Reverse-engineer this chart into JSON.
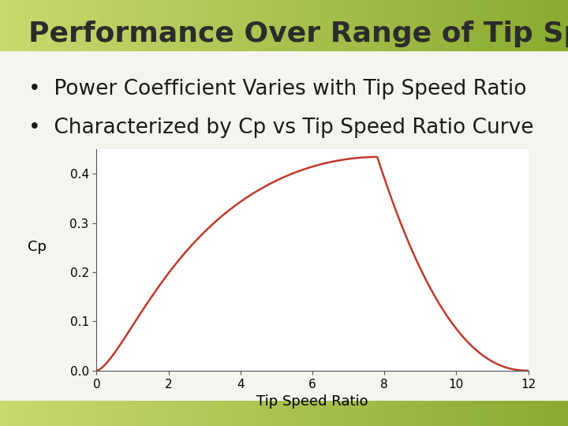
{
  "title": "Performance Over Range of Tip Speed Ratios",
  "bullet1": "Power Coefficient Varies with Tip Speed Ratio",
  "bullet2": "Characterized by Cp vs Tip Speed Ratio Curve",
  "xlabel": "Tip Speed Ratio",
  "ylabel": "Cp",
  "xlim": [
    0,
    12
  ],
  "ylim": [
    0.0,
    0.45
  ],
  "xticks": [
    0,
    2,
    4,
    6,
    8,
    10,
    12
  ],
  "yticks": [
    0.0,
    0.1,
    0.2,
    0.3,
    0.4
  ],
  "line_color": "#c0392b",
  "background_top": "#b5c642",
  "background_mid": "#f0f0f0",
  "title_fontsize": 26,
  "bullet_fontsize": 19,
  "axis_label_fontsize": 13,
  "tick_fontsize": 11
}
